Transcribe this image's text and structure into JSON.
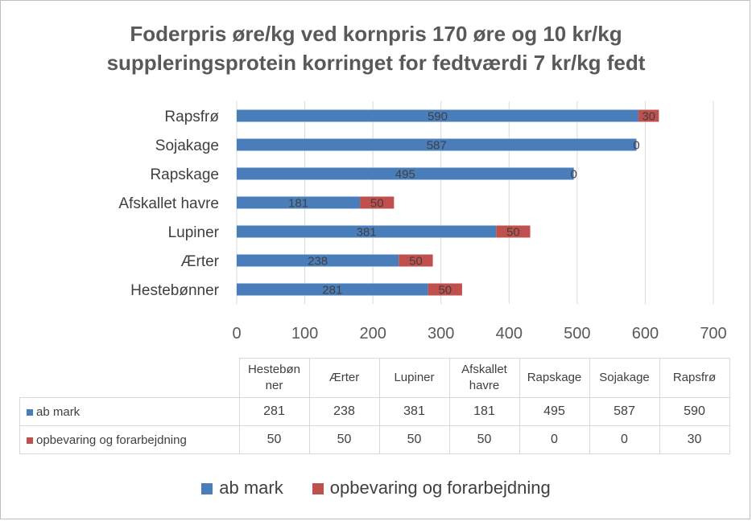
{
  "chart_data": {
    "type": "bar",
    "orientation": "horizontal",
    "stacked": true,
    "title": "Foderpris øre/kg ved kornpris 170 øre og 10 kr/kg\nsuppleringsprotein korringet for fedtværdi 7 kr/kg fedt",
    "categories": [
      "Hestebønner",
      "Ærter",
      "Lupiner",
      "Afskallet havre",
      "Rapskage",
      "Sojakage",
      "Rapsfrø"
    ],
    "table_headers": [
      "Hestebøn\nner",
      "Ærter",
      "Lupiner",
      "Afskallet\nhavre",
      "Rapskage",
      "Sojakage",
      "Rapsfrø"
    ],
    "series": [
      {
        "name": "ab mark",
        "color": "#4a7ebb",
        "values": [
          281,
          238,
          381,
          181,
          495,
          587,
          590
        ]
      },
      {
        "name": "opbevaring og forarbejdning",
        "color": "#c0504d",
        "values": [
          50,
          50,
          50,
          50,
          0,
          0,
          30
        ]
      }
    ],
    "xlim": [
      0,
      700
    ],
    "ticks": [
      0,
      100,
      200,
      300,
      400,
      500,
      600,
      700
    ],
    "grid": true,
    "legend": "bottom",
    "data_table": true
  }
}
